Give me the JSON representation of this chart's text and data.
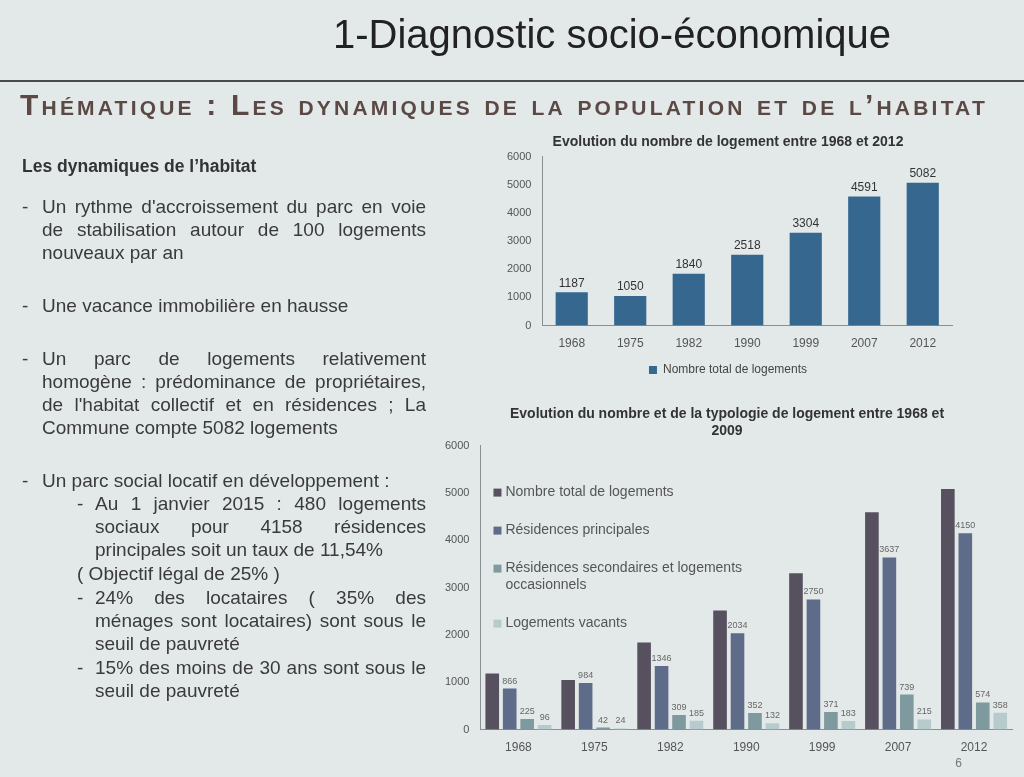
{
  "chart_data": [
    {
      "type": "other",
      "title": "1-Diagnostic socio-économique",
      "subtitle": "Thématique : Les dynamiques de la population et de l’habitat",
      "annotations": [
        "6"
      ]
    },
    {
      "type": "other",
      "title": "Les dynamiques de l’habitat",
      "annotations": [
        "- Un rythme d'accroissement du parc en voie de stabilisation autour de 100 logements nouveaux par an",
        "- Une vacance immobilière en hausse",
        "- Un parc de logements relativement homogène : prédominance de propriétaires, de l'habitat collectif et en résidences ; La Commune compte 5082 logements",
        "- Un parc social locatif en développement :",
        "    - Au 1 janvier 2015 : 480 logements sociaux pour 4158 résidences principales soit un taux de 11,54%",
        "    ( Objectif légal de 25% )",
        "    - 24% des locataires ( 35% des ménages sont locataires) sont sous le seuil de pauvreté",
        "    - 15% des moins de 30 ans sont sous le seuil de pauvreté"
      ]
    },
    {
      "type": "bar",
      "title": "Evolution du nombre de logement entre 1968 et 2012",
      "categories": [
        "1968",
        "1975",
        "1982",
        "1990",
        "1999",
        "2007",
        "2012"
      ],
      "series": [
        {
          "name": "Nombre total de logements",
          "color": "#36678f",
          "values": [
            1187,
            1050,
            1840,
            2518,
            3304,
            4591,
            5082
          ]
        }
      ],
      "ylim": [
        0,
        6000
      ],
      "yticks": [
        0,
        1000,
        2000,
        3000,
        4000,
        5000,
        6000
      ],
      "data_labels": true,
      "legend": "bottom"
    },
    {
      "type": "bar",
      "title": "Evolution du nombre et de la typologie de logement entre 1968 et 2009",
      "categories": [
        "1968",
        "1975",
        "1982",
        "1990",
        "1999",
        "2007",
        "2012"
      ],
      "series": [
        {
          "name": "Nombre total de logements",
          "color": "#57505f",
          "values": [
            1187,
            1050,
            1840,
            2518,
            3304,
            4591,
            5082
          ]
        },
        {
          "name": "Résidences principales",
          "color": "#5e6b89",
          "values": [
            866,
            984,
            1346,
            2034,
            2750,
            3637,
            4150
          ],
          "value_labels": [
            "866",
            "984",
            "1346",
            "2034",
            "2750",
            "3637",
            "4150"
          ]
        },
        {
          "name": "Résidences secondaires et logements occasionnels",
          "color": "#7f9a9f",
          "values": [
            225,
            42,
            309,
            352,
            371,
            739,
            574
          ],
          "value_labels": [
            "225",
            "42",
            "309",
            "352",
            "371",
            "739",
            "574"
          ]
        },
        {
          "name": "Logements vacants",
          "color": "#b7cbcf",
          "values": [
            96,
            24,
            185,
            132,
            183,
            215,
            358
          ],
          "value_labels": [
            "96",
            "24",
            "185",
            "132",
            "183",
            "215",
            "358"
          ]
        }
      ],
      "ylim": [
        0,
        6000
      ],
      "yticks": [
        0,
        1000,
        2000,
        3000,
        4000,
        5000,
        6000
      ],
      "legend": "top left"
    }
  ]
}
